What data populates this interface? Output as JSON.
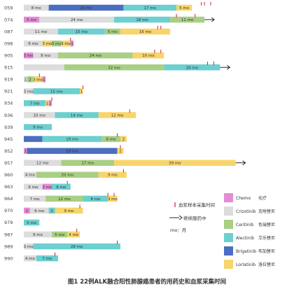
{
  "chart_data": {
    "type": "bar",
    "orientation": "horizontal-stacked-timeline",
    "caption": "图1 22例ALK融合阳性肺腺癌患者的用药史和血浆采集时间",
    "unit_note": "mo：月",
    "sample_note": "血浆样本采集时间",
    "ongoing_note": "继续服药中",
    "drugs": [
      {
        "key": "chemo",
        "name_en": "Chemo",
        "name_cn": "化疗",
        "color": "#e48bd6"
      },
      {
        "key": "criz",
        "name_en": "Crizotinib",
        "name_cn": "克唑替尼",
        "color": "#dcdcdc"
      },
      {
        "key": "cer",
        "name_en": "Ceritinib",
        "name_cn": "色瑞替尼",
        "color": "#a8cf83"
      },
      {
        "key": "ale",
        "name_en": "Alectinib",
        "name_cn": "艾乐替尼",
        "color": "#6dcfcf"
      },
      {
        "key": "brig",
        "name_en": "Brigatinib",
        "name_cn": "布加替尼",
        "color": "#4a6fc0"
      },
      {
        "key": "lor",
        "name_en": "Lorlatinib",
        "name_cn": "洛拉替尼",
        "color": "#f8d56b"
      }
    ],
    "patients": [
      {
        "id": "059",
        "ongoing": false,
        "segments": [
          {
            "drug": "criz",
            "label": "8 mo",
            "months": 8
          },
          {
            "drug": "brig",
            "label": "24 mo",
            "months": 24
          },
          {
            "drug": "ale",
            "label": "17 mo",
            "months": 17
          },
          {
            "drug": "lor",
            "label": "5 mo",
            "months": 5
          }
        ],
        "samples": [
          57,
          58,
          60
        ]
      },
      {
        "id": "074",
        "ongoing": true,
        "segments": [
          {
            "drug": "chemo",
            "label": "5 mo",
            "months": 5
          },
          {
            "drug": "criz",
            "label": "24 mo",
            "months": 24
          },
          {
            "drug": "ale",
            "label": "18 mo",
            "months": 18
          },
          {
            "drug": "cer",
            "label": "11 mo",
            "months": 11
          }
        ],
        "samples": [
          49,
          55
        ]
      },
      {
        "id": "087",
        "ongoing": false,
        "segments": [
          {
            "drug": "criz",
            "label": "11 mo",
            "months": 11
          },
          {
            "drug": "ale",
            "label": "15 mo",
            "months": 15
          },
          {
            "drug": "cer",
            "label": "5 mo",
            "months": 5
          },
          {
            "drug": "lor",
            "label": "16 mo",
            "months": 16
          }
        ],
        "samples": [
          43,
          44
        ]
      },
      {
        "id": "098",
        "ongoing": false,
        "segments": [
          {
            "drug": "criz",
            "label": "6 mo",
            "months": 6
          },
          {
            "drug": "lor",
            "label": "3 mo",
            "months": 3
          },
          {
            "drug": "cer",
            "label": "3 mo",
            "months": 3
          },
          {
            "drug": "lor",
            "label": "3 mo",
            "months": 3
          },
          {
            "drug": "chemo",
            "label": "1",
            "months": 1
          }
        ],
        "samples": [
          15
        ]
      },
      {
        "id": "905",
        "ongoing": false,
        "segments": [
          {
            "drug": "chemo",
            "label": "3 mo",
            "months": 3
          },
          {
            "drug": "criz",
            "label": "8 mo",
            "months": 8
          },
          {
            "drug": "cer",
            "label": "24 mo",
            "months": 24
          },
          {
            "drug": "lor",
            "label": "10 mo",
            "months": 10
          }
        ],
        "samples": [
          42,
          44
        ]
      },
      {
        "id": "915",
        "ongoing": true,
        "segments": [
          {
            "drug": "criz",
            "label": "",
            "months": 13
          },
          {
            "drug": "cer",
            "label": "32 mo",
            "months": 32
          },
          {
            "drug": "ale",
            "label": "18 mo",
            "months": 18
          }
        ],
        "samples": [
          59,
          61
        ]
      },
      {
        "id": "919",
        "ongoing": false,
        "segments": [
          {
            "drug": "criz",
            "label": "1",
            "months": 1
          },
          {
            "drug": "cer",
            "label": "2",
            "months": 2
          },
          {
            "drug": "lor",
            "label": "3 mo",
            "months": 3
          },
          {
            "drug": "chemo",
            "label": "1",
            "months": 1
          }
        ],
        "samples": [
          5
        ]
      },
      {
        "id": "921",
        "ongoing": false,
        "segments": [
          {
            "drug": "criz",
            "label": "3 mo",
            "months": 3
          },
          {
            "drug": "ale",
            "label": "15 mo",
            "months": 15
          },
          {
            "drug": "lor",
            "label": "1",
            "months": 1
          }
        ],
        "samples": [
          19
        ]
      },
      {
        "id": "934",
        "ongoing": false,
        "segments": [
          {
            "drug": "ale",
            "label": "7 mo",
            "months": 7
          },
          {
            "drug": "lor",
            "label": "1",
            "months": 1
          },
          {
            "drug": "chemo",
            "label": "1",
            "months": 1
          }
        ],
        "samples": [
          9
        ]
      },
      {
        "id": "936",
        "ongoing": false,
        "segments": [
          {
            "drug": "criz",
            "label": "10 mo",
            "months": 10
          },
          {
            "drug": "ale",
            "label": "14 mo",
            "months": 14
          },
          {
            "drug": "lor",
            "label": "12 mo",
            "months": 12
          }
        ],
        "samples": [
          34
        ]
      },
      {
        "id": "939",
        "ongoing": false,
        "segments": [
          {
            "drug": "ale",
            "label": "9 mo",
            "months": 9
          }
        ],
        "samples": []
      },
      {
        "id": "945",
        "ongoing": false,
        "segments": [
          {
            "drug": "brig",
            "label": "",
            "months": 6
          },
          {
            "drug": "ale",
            "label": "19 mo",
            "months": 19
          },
          {
            "drug": "cer",
            "label": "6 mo",
            "months": 6
          },
          {
            "drug": "lor",
            "label": "2",
            "months": 2
          }
        ],
        "samples": [
          30
        ]
      },
      {
        "id": "952",
        "ongoing": false,
        "segments": [
          {
            "drug": "chemo",
            "label": "1",
            "months": 1
          },
          {
            "drug": "brig",
            "label": "29 mo",
            "months": 29
          },
          {
            "drug": "lor",
            "label": "2",
            "months": 2
          }
        ],
        "samples": [
          31
        ]
      },
      {
        "id": "957",
        "ongoing": true,
        "segments": [
          {
            "drug": "criz",
            "label": "12 mo",
            "months": 12
          },
          {
            "drug": "cer",
            "label": "17 mo",
            "months": 17
          },
          {
            "drug": "lor",
            "label": "39 mo",
            "months": 39
          }
        ],
        "samples": []
      },
      {
        "id": "960",
        "ongoing": false,
        "segments": [
          {
            "drug": "criz",
            "label": "4 mo",
            "months": 4
          },
          {
            "drug": "cer",
            "label": "20 mo",
            "months": 20
          },
          {
            "drug": "lor",
            "label": "9 mo",
            "months": 9
          }
        ],
        "samples": [
          32
        ]
      },
      {
        "id": "963",
        "ongoing": false,
        "segments": [
          {
            "drug": "criz",
            "label": "6 mo",
            "months": 6
          },
          {
            "drug": "chemo",
            "label": "3 mo",
            "months": 3
          },
          {
            "drug": "ale",
            "label": "6 mo",
            "months": 6
          }
        ],
        "samples": [
          14
        ]
      },
      {
        "id": "964",
        "ongoing": false,
        "segments": [
          {
            "drug": "criz",
            "label": "7 mo",
            "months": 7
          },
          {
            "drug": "cer",
            "label": "12 mo",
            "months": 12
          },
          {
            "drug": "ale",
            "label": "8 mo",
            "months": 8
          },
          {
            "drug": "lor",
            "label": "3 mo",
            "months": 3
          }
        ],
        "samples": [
          27,
          29
        ]
      },
      {
        "id": "970",
        "ongoing": false,
        "segments": [
          {
            "drug": "chemo",
            "label": "2",
            "months": 2
          },
          {
            "drug": "criz",
            "label": "6 mo",
            "months": 6
          },
          {
            "drug": "ale",
            "label": "2",
            "months": 2
          },
          {
            "drug": "lor",
            "label": "9 mo",
            "months": 9
          }
        ],
        "samples": [
          18
        ]
      },
      {
        "id": "979",
        "ongoing": false,
        "segments": [
          {
            "drug": "ale",
            "label": "5 mo",
            "months": 5
          }
        ],
        "samples": []
      },
      {
        "id": "987",
        "ongoing": false,
        "segments": [
          {
            "drug": "criz",
            "label": "9 mo",
            "months": 9
          },
          {
            "drug": "cer",
            "label": "5 mo",
            "months": 5
          },
          {
            "drug": "lor",
            "label": "4 mo",
            "months": 4
          }
        ],
        "samples": [
          17
        ]
      },
      {
        "id": "989",
        "ongoing": false,
        "segments": [
          {
            "drug": "criz",
            "label": "3 mo",
            "months": 3
          },
          {
            "drug": "ale",
            "label": "28 mo",
            "months": 28
          }
        ],
        "samples": [
          30
        ]
      },
      {
        "id": "990",
        "ongoing": false,
        "segments": [
          {
            "drug": "criz",
            "label": "4 mo",
            "months": 4
          },
          {
            "drug": "ale",
            "label": "7 mo",
            "months": 7
          }
        ],
        "samples": [
          10
        ]
      }
    ]
  }
}
